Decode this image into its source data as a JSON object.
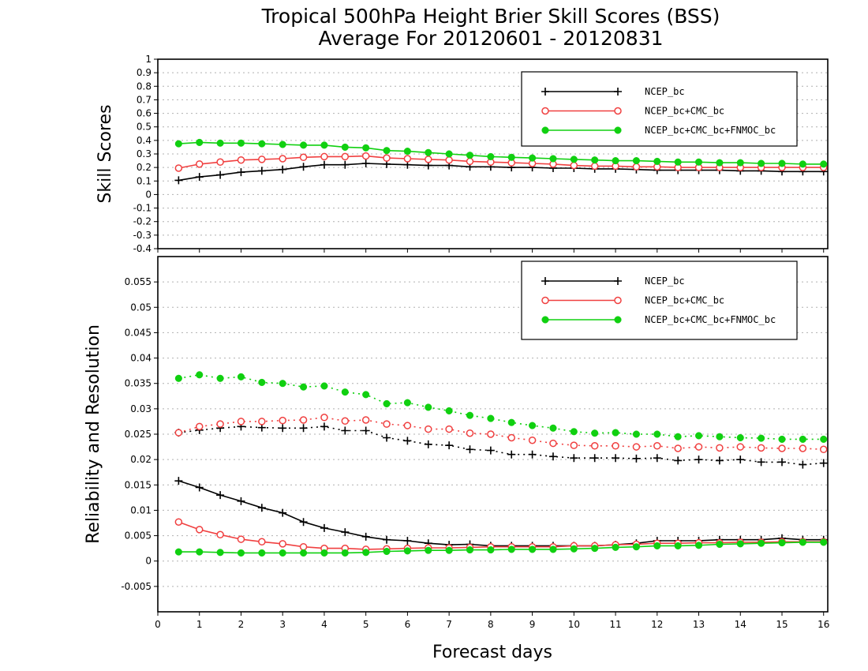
{
  "figure": {
    "title_line1": "Tropical 500hPa Height Brier Skill Scores (BSS)",
    "title_line2": "Average For 20120601 - 20120831",
    "xlabel": "Forecast days"
  },
  "colors": {
    "NCEP_bc": "#000000",
    "NCEP_bc+CMC_bc": "#f04040",
    "NCEP_bc+CMC_bc+FNMOC_bc": "#10d010"
  },
  "chart_data": [
    {
      "type": "line",
      "ylabel": "Skill Scores",
      "xlim": [
        0,
        16.1
      ],
      "ylim": [
        -0.4,
        1.0
      ],
      "xticks": [
        0,
        1,
        2,
        3,
        4,
        5,
        6,
        7,
        8,
        9,
        10,
        11,
        12,
        13,
        14,
        15,
        16
      ],
      "xtick_labels": [
        "0",
        "1",
        "2",
        "3",
        "4",
        "5",
        "6",
        "7",
        "8",
        "9",
        "10",
        "11",
        "12",
        "13",
        "14",
        "15",
        "16"
      ],
      "yticks": [
        -0.4,
        -0.3,
        -0.2,
        -0.1,
        0,
        0.1,
        0.2,
        0.3,
        0.4,
        0.5,
        0.6,
        0.7,
        0.8,
        0.9,
        1.0
      ],
      "ytick_labels": [
        "-0.4",
        "-0.3",
        "-0.2",
        "-0.1",
        "0",
        "0.1",
        "0.2",
        "0.3",
        "0.4",
        "0.5",
        "0.6",
        "0.7",
        "0.8",
        "0.9",
        "1"
      ],
      "grid": true,
      "legend": "top-right",
      "x": [
        0.5,
        1,
        1.5,
        2,
        2.5,
        3,
        3.5,
        4,
        4.5,
        5,
        5.5,
        6,
        6.5,
        7,
        7.5,
        8,
        8.5,
        9,
        9.5,
        10,
        10.5,
        11,
        11.5,
        12,
        12.5,
        13,
        13.5,
        14,
        14.5,
        15,
        15.5,
        16
      ],
      "series": [
        {
          "name": "NCEP_bc",
          "marker": "plus",
          "style": "solid",
          "values": [
            0.105,
            0.13,
            0.145,
            0.165,
            0.175,
            0.185,
            0.205,
            0.22,
            0.22,
            0.23,
            0.225,
            0.22,
            0.215,
            0.215,
            0.205,
            0.205,
            0.2,
            0.2,
            0.195,
            0.195,
            0.19,
            0.19,
            0.185,
            0.18,
            0.18,
            0.18,
            0.18,
            0.175,
            0.175,
            0.17,
            0.17,
            0.17
          ]
        },
        {
          "name": "NCEP_bc+CMC_bc",
          "marker": "open-circle",
          "style": "solid",
          "values": [
            0.195,
            0.225,
            0.24,
            0.255,
            0.26,
            0.265,
            0.275,
            0.28,
            0.28,
            0.285,
            0.27,
            0.265,
            0.26,
            0.255,
            0.245,
            0.24,
            0.235,
            0.23,
            0.225,
            0.215,
            0.21,
            0.21,
            0.205,
            0.205,
            0.2,
            0.2,
            0.2,
            0.2,
            0.2,
            0.2,
            0.2,
            0.2
          ]
        },
        {
          "name": "NCEP_bc+CMC_bc+FNMOC_bc",
          "marker": "filled-circle",
          "style": "solid",
          "values": [
            0.375,
            0.385,
            0.38,
            0.38,
            0.375,
            0.37,
            0.365,
            0.365,
            0.35,
            0.345,
            0.325,
            0.32,
            0.31,
            0.3,
            0.29,
            0.28,
            0.275,
            0.27,
            0.265,
            0.26,
            0.255,
            0.25,
            0.25,
            0.245,
            0.24,
            0.24,
            0.235,
            0.235,
            0.23,
            0.23,
            0.225,
            0.225
          ]
        }
      ]
    },
    {
      "type": "line",
      "ylabel": "Reliability and Resolution",
      "xlim": [
        0,
        16.1
      ],
      "ylim": [
        -0.01,
        0.06
      ],
      "xticks": [
        0,
        1,
        2,
        3,
        4,
        5,
        6,
        7,
        8,
        9,
        10,
        11,
        12,
        13,
        14,
        15,
        16
      ],
      "xtick_labels": [
        "0",
        "1",
        "2",
        "3",
        "4",
        "5",
        "6",
        "7",
        "8",
        "9",
        "10",
        "11",
        "12",
        "13",
        "14",
        "15",
        "16"
      ],
      "yticks": [
        -0.005,
        0,
        0.005,
        0.01,
        0.015,
        0.02,
        0.025,
        0.03,
        0.035,
        0.04,
        0.045,
        0.05,
        0.055
      ],
      "ytick_labels": [
        "-0.005",
        "0",
        "0.005",
        "0.01",
        "0.015",
        "0.02",
        "0.025",
        "0.03",
        "0.035",
        "0.04",
        "0.045",
        "0.05",
        "0.055"
      ],
      "grid": true,
      "legend": "top-right",
      "x": [
        0.5,
        1,
        1.5,
        2,
        2.5,
        3,
        3.5,
        4,
        4.5,
        5,
        5.5,
        6,
        6.5,
        7,
        7.5,
        8,
        8.5,
        9,
        9.5,
        10,
        10.5,
        11,
        11.5,
        12,
        12.5,
        13,
        13.5,
        14,
        14.5,
        15,
        15.5,
        16
      ],
      "series": [
        {
          "name": "NCEP_bc",
          "role": "reliability",
          "marker": "plus",
          "style": "solid",
          "values": [
            0.0158,
            0.0145,
            0.013,
            0.0118,
            0.0105,
            0.0095,
            0.0077,
            0.0065,
            0.0057,
            0.0048,
            0.0042,
            0.004,
            0.0035,
            0.0032,
            0.0033,
            0.003,
            0.003,
            0.003,
            0.003,
            0.003,
            0.003,
            0.0032,
            0.0035,
            0.004,
            0.004,
            0.004,
            0.0042,
            0.0042,
            0.0042,
            0.0045,
            0.0042,
            0.0042
          ]
        },
        {
          "name": "NCEP_bc+CMC_bc",
          "role": "reliability",
          "marker": "open-circle",
          "style": "solid",
          "values": [
            0.0077,
            0.0062,
            0.0052,
            0.0043,
            0.0038,
            0.0034,
            0.0028,
            0.0025,
            0.0025,
            0.0023,
            0.0024,
            0.0025,
            0.0026,
            0.0026,
            0.0027,
            0.0028,
            0.0028,
            0.0028,
            0.0028,
            0.003,
            0.003,
            0.0032,
            0.0033,
            0.0035,
            0.0035,
            0.0036,
            0.0036,
            0.0037,
            0.0037,
            0.0038,
            0.0038,
            0.0038
          ]
        },
        {
          "name": "NCEP_bc+CMC_bc+FNMOC_bc",
          "role": "reliability",
          "marker": "filled-circle",
          "style": "solid",
          "values": [
            0.0018,
            0.0018,
            0.0017,
            0.0016,
            0.0016,
            0.0016,
            0.0016,
            0.0016,
            0.0016,
            0.0017,
            0.0019,
            0.002,
            0.0021,
            0.0021,
            0.0022,
            0.0022,
            0.0023,
            0.0023,
            0.0023,
            0.0024,
            0.0025,
            0.0027,
            0.0028,
            0.003,
            0.003,
            0.0031,
            0.0033,
            0.0034,
            0.0035,
            0.0036,
            0.0037,
            0.0037
          ]
        },
        {
          "name": "NCEP_bc",
          "role": "resolution",
          "marker": "plus",
          "style": "dotted",
          "values": [
            0.0253,
            0.0258,
            0.0262,
            0.0265,
            0.0263,
            0.0262,
            0.0262,
            0.0265,
            0.0257,
            0.0257,
            0.0243,
            0.0237,
            0.023,
            0.0228,
            0.022,
            0.0218,
            0.021,
            0.021,
            0.0206,
            0.0203,
            0.0203,
            0.0203,
            0.0202,
            0.0203,
            0.0198,
            0.02,
            0.0198,
            0.02,
            0.0195,
            0.0195,
            0.019,
            0.0193
          ]
        },
        {
          "name": "NCEP_bc+CMC_bc",
          "role": "resolution",
          "marker": "open-circle",
          "style": "dotted",
          "values": [
            0.0253,
            0.0265,
            0.027,
            0.0275,
            0.0275,
            0.0277,
            0.0278,
            0.0283,
            0.0276,
            0.0278,
            0.027,
            0.0267,
            0.026,
            0.026,
            0.0252,
            0.025,
            0.0243,
            0.0238,
            0.0232,
            0.0228,
            0.0227,
            0.0227,
            0.0225,
            0.0227,
            0.0222,
            0.0225,
            0.0223,
            0.0225,
            0.0223,
            0.0222,
            0.0222,
            0.022
          ]
        },
        {
          "name": "NCEP_bc+CMC_bc+FNMOC_bc",
          "role": "resolution",
          "marker": "filled-circle",
          "style": "dotted",
          "values": [
            0.036,
            0.0367,
            0.036,
            0.0363,
            0.0352,
            0.035,
            0.0343,
            0.0345,
            0.0333,
            0.0328,
            0.031,
            0.0312,
            0.0303,
            0.0296,
            0.0287,
            0.0281,
            0.0273,
            0.0267,
            0.0262,
            0.0255,
            0.0252,
            0.0253,
            0.025,
            0.025,
            0.0245,
            0.0247,
            0.0245,
            0.0243,
            0.0242,
            0.024,
            0.024,
            0.024
          ]
        }
      ]
    }
  ]
}
